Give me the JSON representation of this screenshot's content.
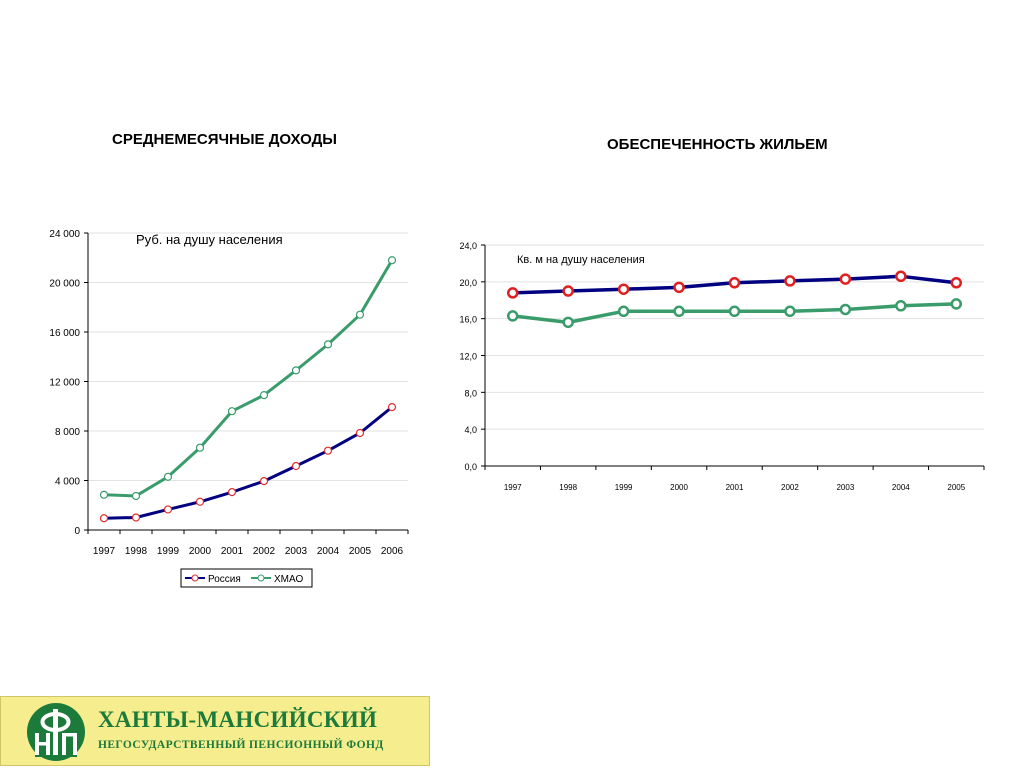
{
  "titles": {
    "left": "СРЕДНЕМЕСЯЧНЫЕ  ДОХОДЫ",
    "right": "ОБЕСПЕЧЕННОСТЬ ЖИЛЬЕМ"
  },
  "logo": {
    "name": "ХАНТЫ-МАНСИЙСКИЙ",
    "subtitle": "НЕГОСУДАРСТВЕННЫЙ ПЕНСИОННЫЙ ФОНД",
    "emblem_letters": "ФНП",
    "colors": {
      "background": "#f6ee8e",
      "green": "#1c7a3b"
    }
  },
  "chart_data": [
    {
      "type": "line",
      "title": "СРЕДНЕМЕСЯЧНЫЕ  ДОХОДЫ",
      "annotation": "Руб.  на душу населения",
      "x": [
        "1997",
        "1998",
        "1999",
        "2000",
        "2001",
        "2002",
        "2003",
        "2004",
        "2005",
        "2006"
      ],
      "ylim": [
        0,
        24000
      ],
      "yticks": [
        0,
        4000,
        8000,
        12000,
        16000,
        20000,
        24000
      ],
      "ytick_labels": [
        "0",
        "4 000",
        "8 000",
        "12 000",
        "16 000",
        "20 000",
        "24 000"
      ],
      "grid": true,
      "legend": "bottom",
      "series": [
        {
          "name": "Россия",
          "color": "#000080",
          "marker_color": "#e03030",
          "values": [
            950,
            1010,
            1660,
            2280,
            3060,
            3950,
            5170,
            6410,
            7840,
            9930
          ]
        },
        {
          "name": "ХМАО",
          "color": "#3a9b6b",
          "marker_color": "#3a9b6b",
          "values": [
            2850,
            2750,
            4300,
            6650,
            9600,
            10900,
            12900,
            15000,
            17400,
            21800
          ]
        }
      ]
    },
    {
      "type": "line",
      "title": "ОБЕСПЕЧЕННОСТЬ ЖИЛЬЕМ",
      "annotation": "Кв. м на душу населения",
      "x": [
        "1997",
        "1998",
        "1999",
        "2000",
        "2001",
        "2002",
        "2003",
        "2004",
        "2005"
      ],
      "ylim": [
        0,
        24
      ],
      "yticks": [
        0,
        4,
        8,
        12,
        16,
        20,
        24
      ],
      "ytick_labels": [
        "0,0",
        "4,0",
        "8,0",
        "12,0",
        "16,0",
        "20,0",
        "24,0"
      ],
      "grid": true,
      "series": [
        {
          "color": "#000080",
          "marker_color": "#e02020",
          "values": [
            18.8,
            19.0,
            19.2,
            19.4,
            19.9,
            20.1,
            20.3,
            20.6,
            19.9
          ]
        },
        {
          "color": "#3a9b6b",
          "marker_color": "#3a9b6b",
          "values": [
            16.3,
            15.6,
            16.8,
            16.8,
            16.8,
            16.8,
            17.0,
            17.4,
            17.6
          ]
        }
      ]
    }
  ]
}
